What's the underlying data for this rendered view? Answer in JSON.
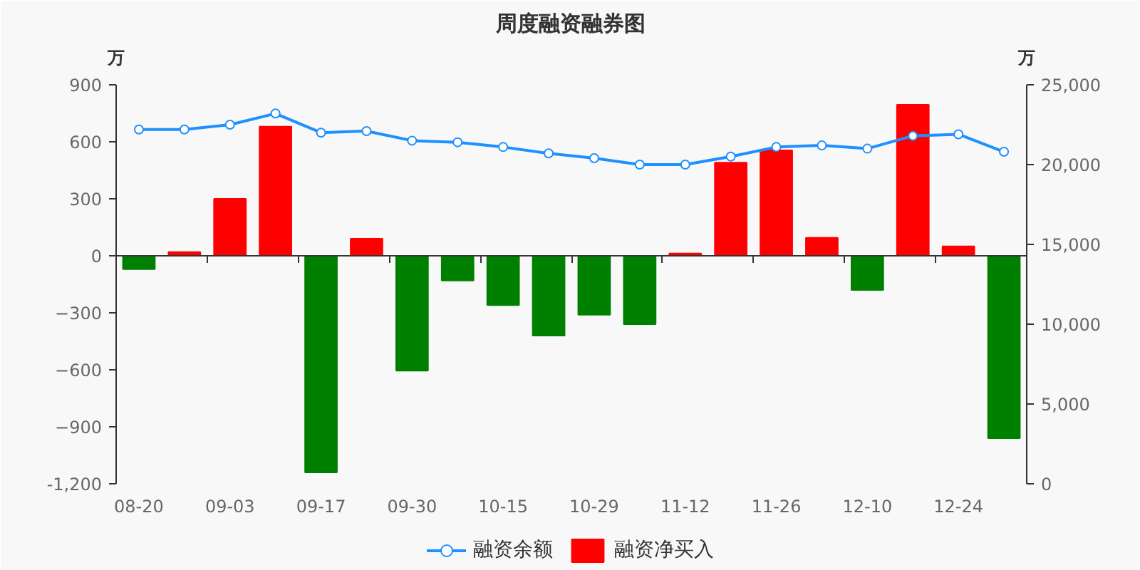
{
  "chart_data": {
    "type": "bar",
    "title": "周度融资融券图",
    "ylabel": "万",
    "y2label": "万",
    "categories": [
      "08-20",
      null,
      "09-03",
      null,
      "09-17",
      null,
      "09-30",
      null,
      "10-15",
      null,
      "10-29",
      null,
      "11-12",
      null,
      "11-26",
      null,
      "12-10",
      null,
      "12-24",
      null
    ],
    "series": [
      {
        "name": "融资余额",
        "type": "line",
        "axis": "y2",
        "color": "#1e90ff",
        "values": [
          22200,
          22200,
          22500,
          23200,
          22000,
          22100,
          21500,
          21400,
          21100,
          20700,
          20400,
          20000,
          20000,
          20500,
          21100,
          21200,
          21000,
          21800,
          21900,
          20800
        ]
      },
      {
        "name": "融资净买入",
        "color": "#ff0000",
        "colors": [
          "#008000",
          "#ff0000",
          "#ff0000",
          "#ff0000",
          "#008000",
          "#ff0000",
          "#008000",
          "#008000",
          "#008000",
          "#008000",
          "#008000",
          "#008000",
          "#ff0000",
          "#ff0000",
          "#ff0000",
          "#ff0000",
          "#008000",
          "#ff0000",
          "#ff0000",
          "#008000"
        ],
        "values": [
          -70,
          20,
          300,
          680,
          -1140,
          90,
          -605,
          -130,
          -260,
          -420,
          -310,
          -360,
          12,
          490,
          555,
          95,
          -180,
          795,
          50,
          -960
        ]
      }
    ],
    "ylim": [
      -1200,
      900
    ],
    "yticks": [
      {
        "value": -1200,
        "label": "-1,200"
      },
      -900,
      -600,
      -300,
      0,
      300,
      600,
      900
    ],
    "y2lim": [
      0,
      25000
    ],
    "y2ticks": [
      0,
      {
        "value": 5000,
        "label": "5,000"
      },
      {
        "value": 10000,
        "label": "10,000"
      },
      {
        "value": 15000,
        "label": "15,000"
      },
      {
        "value": 20000,
        "label": "20,000"
      },
      {
        "value": 25000,
        "label": "25,000"
      }
    ],
    "marker": "circle",
    "legend": "bottom"
  }
}
